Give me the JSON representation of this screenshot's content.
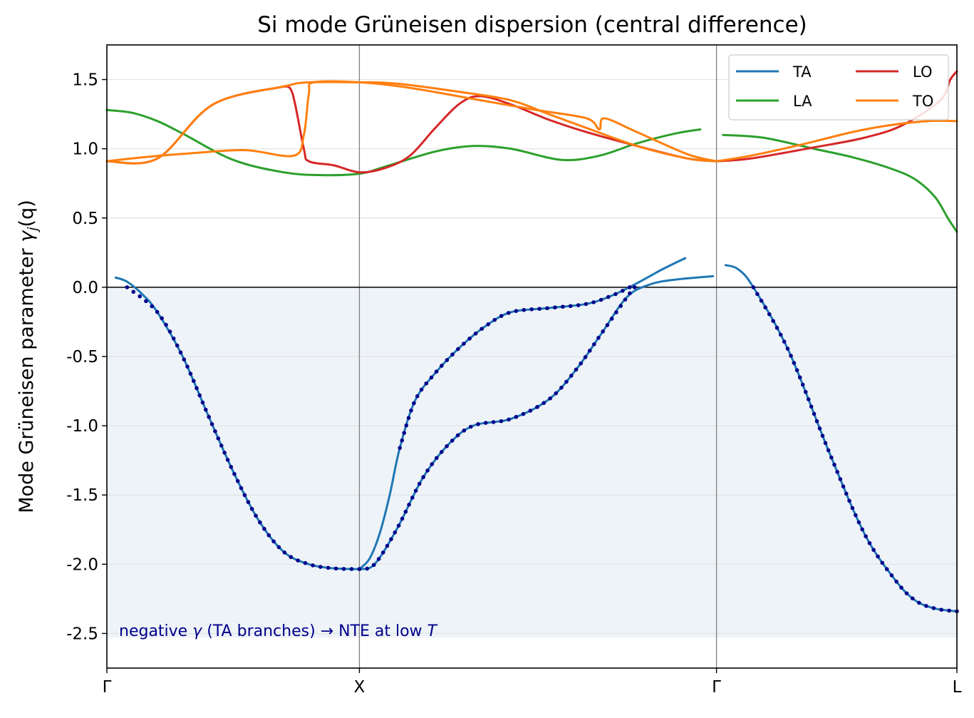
{
  "chart_data": {
    "type": "line",
    "title": "Si mode Grüneisen dispersion (central difference)",
    "ylabel": "Mode Grüneisen parameter γ_j(q)",
    "ylabel_parts": {
      "main": "Mode Grüneisen parameter ",
      "gamma": "γ",
      "sub": "j",
      "arg": "(q)"
    },
    "xlabel": "",
    "ylim": [
      -2.75,
      1.75
    ],
    "xlim": [
      0,
      3.366
    ],
    "y_ticks": [
      1.5,
      1.0,
      0.5,
      0.0,
      -0.5,
      -1.0,
      -1.5,
      -2.0,
      -2.5
    ],
    "y_tick_labels": [
      "1.5",
      "1.0",
      "0.5",
      "0.0",
      "-0.5",
      "-1.0",
      "-1.5",
      "-2.0",
      "-2.5"
    ],
    "x_ticks": [
      {
        "label": "Γ",
        "x": 0
      },
      {
        "label": "X",
        "x": 1.0
      },
      {
        "label": "Γ",
        "x": 2.414
      },
      {
        "label": "L",
        "x": 3.366
      }
    ],
    "grid": true,
    "legend_placement": "top-right",
    "shaded_region": {
      "ymin": -2.53,
      "ymax": 0.0,
      "color": "#eef3f8"
    },
    "zero_line": 0.0,
    "annotation": {
      "prefix": "negative ",
      "gamma": "γ",
      "middle": " (TA branches) → NTE at low ",
      "italic_T": "T"
    },
    "legend": [
      {
        "name": "TA",
        "color": "#1f77b4"
      },
      {
        "name": "LO",
        "color": "#d62728"
      },
      {
        "name": "LA",
        "color": "#2ca02c"
      },
      {
        "name": "TO",
        "color": "#ff7f0e"
      }
    ],
    "marker_color": "#00008b",
    "series": [
      {
        "name": "TA",
        "color": "#1f77b4",
        "segments": [
          [
            [
              0.035,
              0.07
            ],
            [
              0.08,
              0.04
            ],
            [
              0.14,
              -0.05
            ],
            [
              0.2,
              -0.18
            ],
            [
              0.3,
              -0.5
            ],
            [
              0.4,
              -0.92
            ],
            [
              0.5,
              -1.33
            ],
            [
              0.6,
              -1.68
            ],
            [
              0.7,
              -1.91
            ],
            [
              0.8,
              -2.0
            ],
            [
              0.9,
              -2.03
            ],
            [
              1.0,
              -2.035
            ]
          ],
          [
            [
              1.0,
              -2.035
            ],
            [
              1.04,
              -1.96
            ],
            [
              1.08,
              -1.78
            ],
            [
              1.12,
              -1.5
            ],
            [
              1.16,
              -1.16
            ],
            [
              1.22,
              -0.82
            ],
            [
              1.3,
              -0.62
            ],
            [
              1.4,
              -0.43
            ],
            [
              1.5,
              -0.28
            ],
            [
              1.6,
              -0.18
            ],
            [
              1.75,
              -0.15
            ],
            [
              1.9,
              -0.12
            ],
            [
              2.0,
              -0.06
            ],
            [
              2.1,
              0.03
            ],
            [
              2.2,
              0.13
            ],
            [
              2.29,
              0.21
            ]
          ],
          [
            [
              1.0,
              -2.035
            ],
            [
              1.06,
              -2.0
            ],
            [
              1.15,
              -1.74
            ],
            [
              1.25,
              -1.38
            ],
            [
              1.35,
              -1.14
            ],
            [
              1.45,
              -1.0
            ],
            [
              1.6,
              -0.95
            ],
            [
              1.75,
              -0.81
            ],
            [
              1.86,
              -0.59
            ],
            [
              1.96,
              -0.33
            ],
            [
              2.06,
              -0.07
            ],
            [
              2.15,
              0.02
            ],
            [
              2.25,
              0.055
            ],
            [
              2.4,
              0.08
            ]
          ],
          [
            [
              2.45,
              0.16
            ],
            [
              2.5,
              0.13
            ],
            [
              2.56,
              0.0
            ],
            [
              2.7,
              -0.46
            ],
            [
              2.86,
              -1.19
            ],
            [
              3.0,
              -1.78
            ],
            [
              3.12,
              -2.11
            ],
            [
              3.2,
              -2.26
            ],
            [
              3.28,
              -2.32
            ],
            [
              3.366,
              -2.34
            ]
          ]
        ]
      },
      {
        "name": "LA",
        "color": "#2ca02c",
        "segments": [
          [
            [
              0.0,
              1.28
            ],
            [
              0.1,
              1.26
            ],
            [
              0.2,
              1.2
            ],
            [
              0.3,
              1.11
            ],
            [
              0.5,
              0.92
            ],
            [
              0.7,
              0.83
            ],
            [
              0.85,
              0.81
            ],
            [
              1.0,
              0.82
            ],
            [
              1.1,
              0.87
            ],
            [
              1.3,
              0.98
            ],
            [
              1.45,
              1.02
            ],
            [
              1.6,
              1.0
            ],
            [
              1.8,
              0.92
            ],
            [
              1.95,
              0.95
            ],
            [
              2.1,
              1.04
            ],
            [
              2.25,
              1.11
            ],
            [
              2.35,
              1.14
            ]
          ],
          [
            [
              2.44,
              1.1
            ],
            [
              2.6,
              1.08
            ],
            [
              2.8,
              1.0
            ],
            [
              2.95,
              0.94
            ],
            [
              3.1,
              0.86
            ],
            [
              3.2,
              0.78
            ],
            [
              3.28,
              0.65
            ],
            [
              3.33,
              0.5
            ],
            [
              3.366,
              0.4
            ]
          ]
        ]
      },
      {
        "name": "LO",
        "color": "#d62728",
        "segments": [
          [
            [
              0.0,
              0.91
            ],
            [
              0.2,
              0.93
            ],
            [
              0.42,
              1.32
            ],
            [
              0.7,
              1.45
            ]
          ],
          [
            [
              0.7,
              1.45
            ],
            [
              0.735,
              1.4
            ],
            [
              0.78,
              1.0
            ],
            [
              0.8,
              0.91
            ],
            [
              0.9,
              0.88
            ],
            [
              1.0,
              0.83
            ],
            [
              1.1,
              0.86
            ],
            [
              1.2,
              0.95
            ],
            [
              1.3,
              1.15
            ],
            [
              1.4,
              1.33
            ],
            [
              1.48,
              1.38
            ],
            [
              1.6,
              1.32
            ],
            [
              1.75,
              1.21
            ],
            [
              1.9,
              1.12
            ],
            [
              2.1,
              1.02
            ],
            [
              2.3,
              0.93
            ],
            [
              2.414,
              0.91
            ]
          ],
          [
            [
              2.414,
              0.91
            ],
            [
              2.55,
              0.93
            ],
            [
              2.8,
              1.01
            ],
            [
              3.0,
              1.08
            ],
            [
              3.15,
              1.17
            ],
            [
              3.3,
              1.35
            ],
            [
              3.34,
              1.5
            ],
            [
              3.366,
              1.56
            ]
          ]
        ]
      },
      {
        "name": "TO",
        "color": "#ff7f0e",
        "segments": [
          [
            [
              0.0,
              0.91
            ],
            [
              0.2,
              0.93
            ],
            [
              0.42,
              1.32
            ],
            [
              0.7,
              1.45
            ],
            [
              0.8,
              1.48
            ],
            [
              1.0,
              1.48
            ],
            [
              1.15,
              1.47
            ],
            [
              1.4,
              1.41
            ],
            [
              1.6,
              1.35
            ],
            [
              1.75,
              1.25
            ],
            [
              1.9,
              1.15
            ],
            [
              2.1,
              1.02
            ],
            [
              2.3,
              0.93
            ],
            [
              2.414,
              0.91
            ]
          ],
          [
            [
              0.0,
              0.91
            ],
            [
              0.15,
              0.94
            ],
            [
              0.35,
              0.97
            ],
            [
              0.55,
              0.99
            ],
            [
              0.74,
              0.95
            ],
            [
              0.78,
              1.1
            ],
            [
              0.8,
              1.4
            ],
            [
              0.82,
              1.48
            ],
            [
              1.0,
              1.48
            ],
            [
              1.2,
              1.44
            ],
            [
              1.45,
              1.36
            ],
            [
              1.7,
              1.28
            ],
            [
              1.9,
              1.22
            ],
            [
              1.95,
              1.14
            ],
            [
              1.97,
              1.22
            ],
            [
              2.1,
              1.12
            ],
            [
              2.3,
              0.96
            ],
            [
              2.414,
              0.91
            ]
          ],
          [
            [
              2.414,
              0.91
            ],
            [
              2.55,
              0.95
            ],
            [
              2.75,
              1.03
            ],
            [
              2.95,
              1.12
            ],
            [
              3.1,
              1.17
            ],
            [
              3.25,
              1.2
            ],
            [
              3.366,
              1.2
            ]
          ]
        ]
      }
    ],
    "marker_segments": [
      [
        [
          0.08,
          0.0
        ],
        [
          0.2,
          -0.18
        ],
        [
          0.3,
          -0.5
        ],
        [
          0.4,
          -0.92
        ],
        [
          0.5,
          -1.33
        ],
        [
          0.6,
          -1.68
        ],
        [
          0.7,
          -1.91
        ],
        [
          0.8,
          -2.0
        ],
        [
          0.9,
          -2.03
        ],
        [
          1.0,
          -2.035
        ]
      ],
      [
        [
          1.0,
          -2.035
        ],
        [
          1.06,
          -2.0
        ],
        [
          1.15,
          -1.74
        ],
        [
          1.25,
          -1.38
        ],
        [
          1.35,
          -1.14
        ],
        [
          1.45,
          -1.0
        ],
        [
          1.6,
          -0.95
        ],
        [
          1.75,
          -0.81
        ],
        [
          1.86,
          -0.59
        ],
        [
          1.96,
          -0.33
        ],
        [
          2.06,
          -0.07
        ],
        [
          2.09,
          0.0
        ]
      ],
      [
        [
          1.16,
          -1.16
        ],
        [
          1.22,
          -0.82
        ],
        [
          1.3,
          -0.62
        ],
        [
          1.4,
          -0.43
        ],
        [
          1.5,
          -0.28
        ],
        [
          1.6,
          -0.18
        ],
        [
          1.75,
          -0.15
        ],
        [
          1.9,
          -0.12
        ],
        [
          2.0,
          -0.06
        ],
        [
          2.07,
          0.0
        ]
      ],
      [
        [
          2.56,
          0.0
        ],
        [
          2.7,
          -0.46
        ],
        [
          2.86,
          -1.19
        ],
        [
          3.0,
          -1.78
        ],
        [
          3.12,
          -2.11
        ],
        [
          3.2,
          -2.26
        ],
        [
          3.28,
          -2.32
        ],
        [
          3.366,
          -2.34
        ]
      ]
    ]
  }
}
